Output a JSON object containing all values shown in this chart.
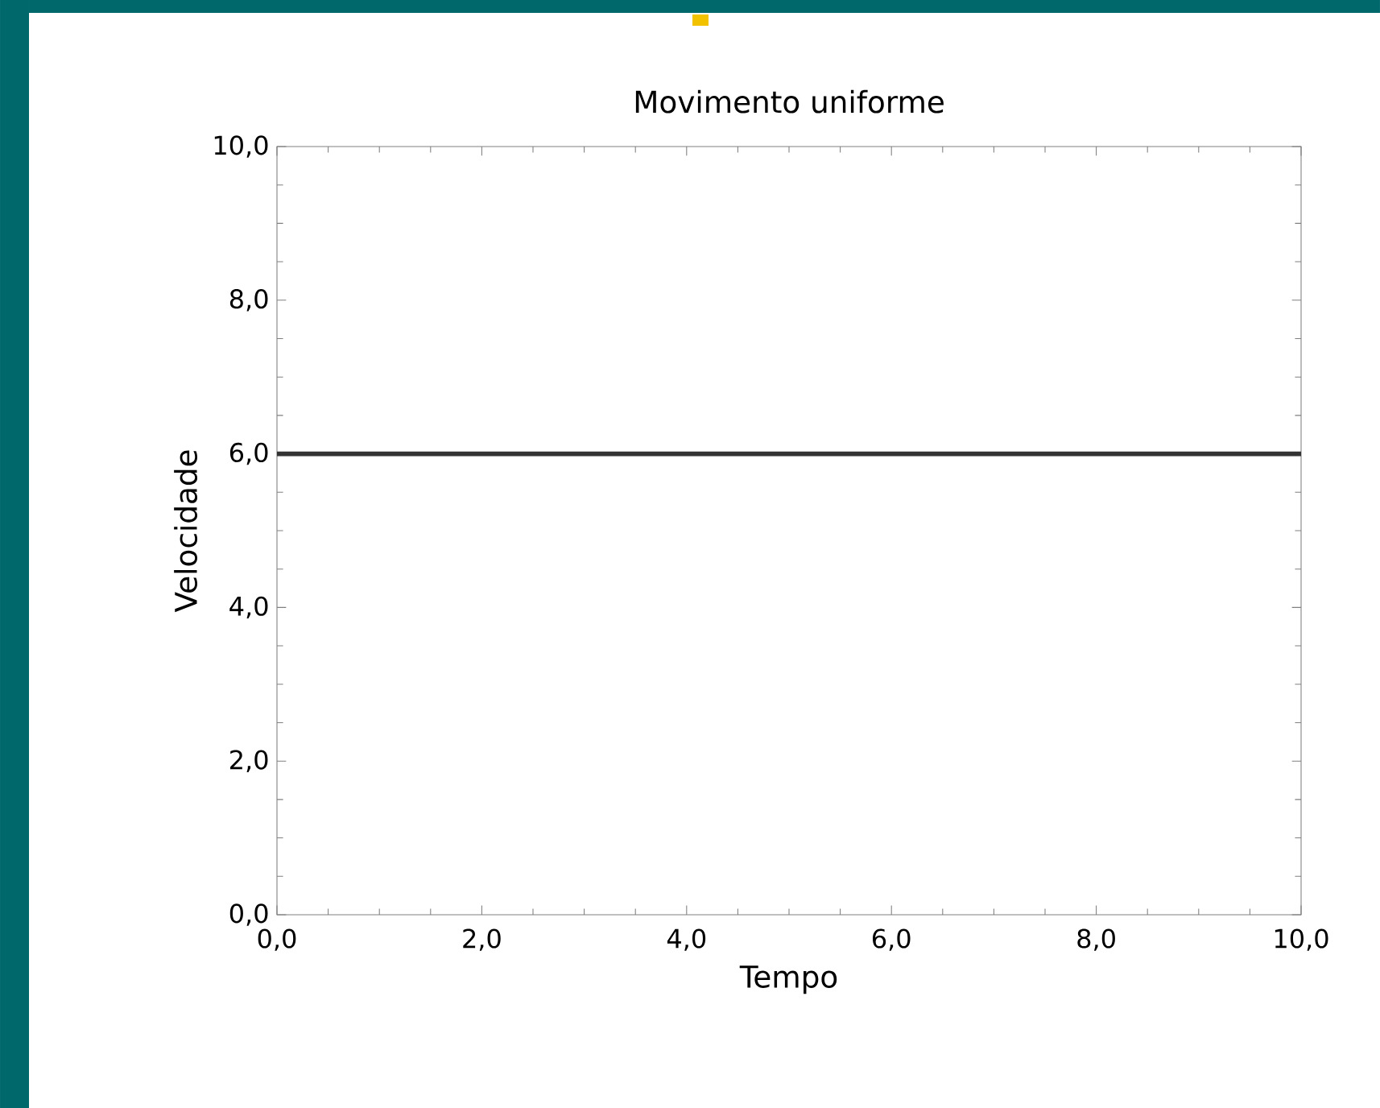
{
  "chart_data": {
    "type": "line",
    "title": "Movimento uniforme",
    "xlabel": "Tempo",
    "ylabel": "Velocidade",
    "x": [
      0,
      10
    ],
    "series": [
      {
        "color": "#333333",
        "values": [
          6,
          6
        ]
      }
    ],
    "xlim": [
      0,
      10
    ],
    "ylim": [
      0,
      10
    ],
    "xticks": [
      {
        "value": 0,
        "label": "0,0"
      },
      {
        "value": 2,
        "label": "2,0"
      },
      {
        "value": 4,
        "label": "4,0"
      },
      {
        "value": 6,
        "label": "6,0"
      },
      {
        "value": 8,
        "label": "8,0"
      },
      {
        "value": 10,
        "label": "10,0"
      }
    ],
    "yticks": [
      {
        "value": 0,
        "label": "0,0"
      },
      {
        "value": 2,
        "label": "2,0"
      },
      {
        "value": 4,
        "label": "4,0"
      },
      {
        "value": 6,
        "label": "6,0"
      },
      {
        "value": 8,
        "label": "8,0"
      },
      {
        "value": 10,
        "label": "10,0"
      }
    ],
    "grid": false,
    "marker": "none",
    "line_style": "solid"
  }
}
